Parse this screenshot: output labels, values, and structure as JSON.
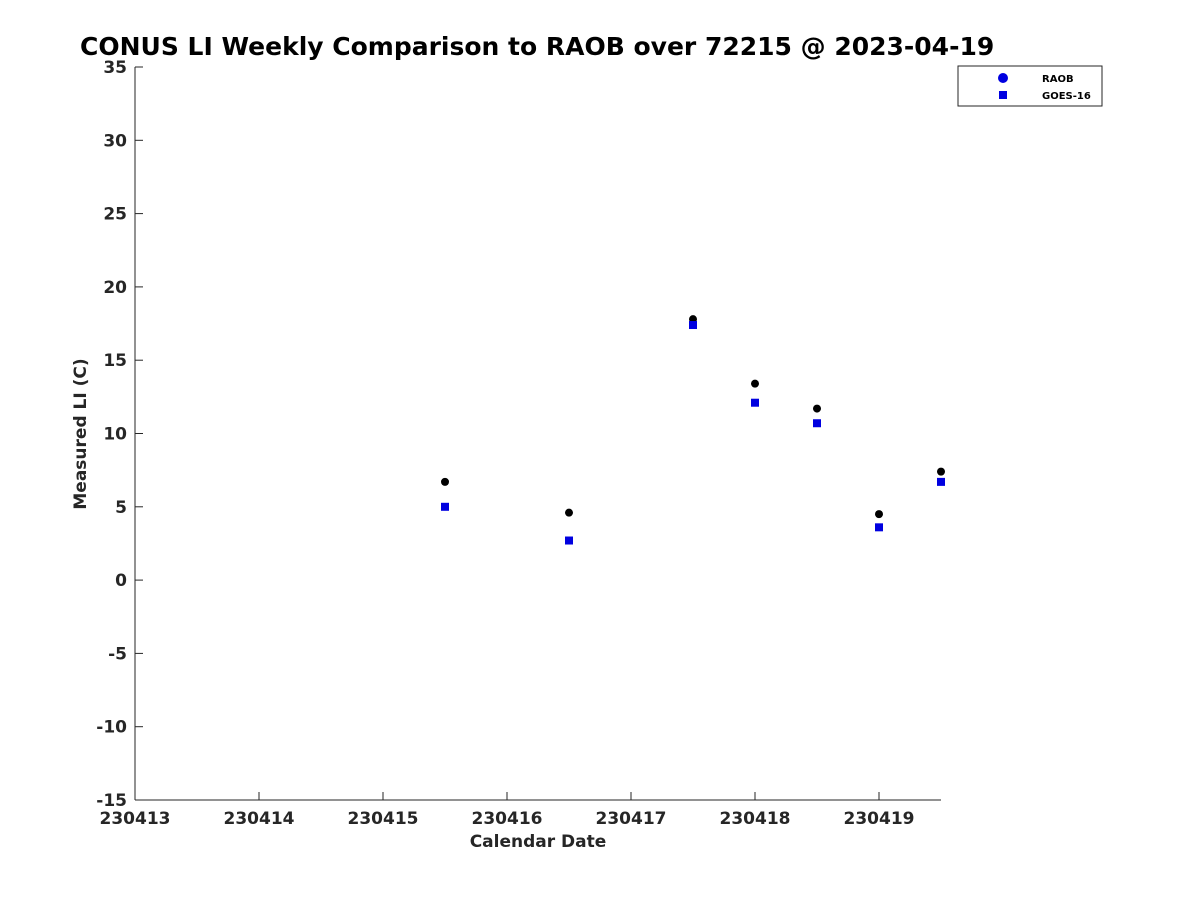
{
  "chart_data": {
    "type": "scatter",
    "title": "CONUS LI Weekly Comparison to RAOB over 72215 @ 2023-04-19",
    "xlabel": "Calendar Date",
    "ylabel": "Measured LI (C)",
    "xlim": [
      230413,
      230419.5
    ],
    "ylim": [
      -15,
      35
    ],
    "x_ticks": [
      230413,
      230414,
      230415,
      230416,
      230417,
      230418,
      230419
    ],
    "x_tick_labels": [
      "230413",
      "230414",
      "230415",
      "230416",
      "230417",
      "230418",
      "230419"
    ],
    "y_ticks": [
      -15,
      -10,
      -5,
      0,
      5,
      10,
      15,
      20,
      25,
      30,
      35
    ],
    "y_tick_labels": [
      "-15",
      "-10",
      "-5",
      "0",
      "5",
      "10",
      "15",
      "20",
      "25",
      "30",
      "35"
    ],
    "grid": false,
    "legend_position": "top-right",
    "series": [
      {
        "name": "RAOB",
        "marker": "circle",
        "legend_color": "#0000e0",
        "color": "#000000",
        "x": [
          230415.5,
          230416.5,
          230417.5,
          230418.0,
          230418.5,
          230419.0,
          230419.5
        ],
        "y": [
          6.7,
          4.6,
          17.8,
          13.4,
          11.7,
          4.5,
          7.4
        ]
      },
      {
        "name": "GOES-16",
        "marker": "square",
        "legend_color": "#0000e0",
        "color": "#0000e0",
        "x": [
          230415.5,
          230416.5,
          230417.5,
          230418.0,
          230418.5,
          230419.0,
          230419.5
        ],
        "y": [
          5.0,
          2.7,
          17.4,
          12.1,
          10.7,
          3.6,
          6.7
        ]
      }
    ]
  }
}
